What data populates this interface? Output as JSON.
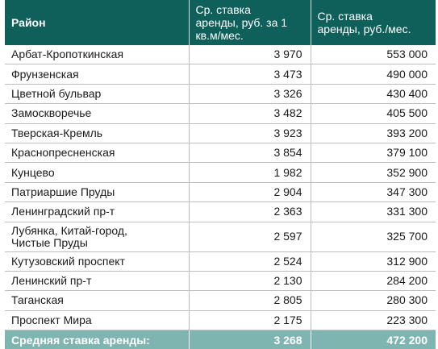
{
  "header": {
    "col1": "Район",
    "col2": "Ср. ставка\nаренды, руб. за 1\nкв.м/мес.",
    "col3": "Ср. ставка\nаренды, руб./мес."
  },
  "rows": [
    {
      "district": "Арбат-Кропоткинская",
      "rate_sqm": "3 970",
      "rate_month": "553 000"
    },
    {
      "district": "Фрунзенская",
      "rate_sqm": "3 473",
      "rate_month": "490 000"
    },
    {
      "district": "Цветной бульвар",
      "rate_sqm": "3 326",
      "rate_month": "430 400"
    },
    {
      "district": "Замоскворечье",
      "rate_sqm": "3 482",
      "rate_month": "405 500"
    },
    {
      "district": "Тверская-Кремль",
      "rate_sqm": "3 923",
      "rate_month": "393 200"
    },
    {
      "district": "Краснопресненская",
      "rate_sqm": "3 854",
      "rate_month": "379 100"
    },
    {
      "district": "Кунцево",
      "rate_sqm": "1 982",
      "rate_month": "352 900"
    },
    {
      "district": "Патриаршие Пруды",
      "rate_sqm": "2 904",
      "rate_month": "347 300"
    },
    {
      "district": "Ленинградский пр-т",
      "rate_sqm": "2 363",
      "rate_month": "331 300"
    },
    {
      "district": "Лубянка, Китай-город,\nЧистые Пруды",
      "rate_sqm": "2 597",
      "rate_month": "325 700"
    },
    {
      "district": "Кутузовский проспект",
      "rate_sqm": "2 524",
      "rate_month": "312 900"
    },
    {
      "district": "Ленинский пр-т",
      "rate_sqm": "2 130",
      "rate_month": "284 200"
    },
    {
      "district": "Таганская",
      "rate_sqm": "2 805",
      "rate_month": "280 300"
    },
    {
      "district": "Проспект Мира",
      "rate_sqm": "2 175",
      "rate_month": "223 300"
    }
  ],
  "footer": {
    "label": "Средняя ставка аренды:",
    "rate_sqm": "3 268",
    "rate_month": "472 200"
  },
  "colors": {
    "header_bg": "#0f5f5b",
    "footer_bg": "#7fb5b1"
  }
}
